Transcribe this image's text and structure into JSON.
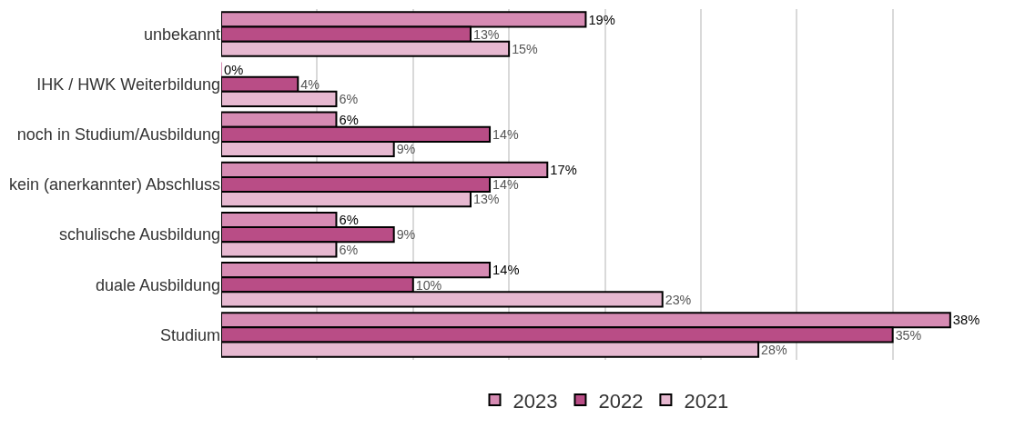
{
  "chart_data": {
    "type": "bar",
    "orientation": "horizontal",
    "categories": [
      "unbekannt",
      "IHK / HWK Weiterbildung",
      "noch in Studium/Ausbildung",
      "kein (anerkannter) Abschluss",
      "schulische Ausbildung",
      "duale Ausbildung",
      "Studium"
    ],
    "series": [
      {
        "name": "2023",
        "color": "#d68bb3",
        "values": [
          19,
          0,
          6,
          17,
          6,
          14,
          38
        ],
        "value_labels": [
          "19%",
          "0%",
          "6%",
          "17%",
          "6%",
          "14%",
          "38%"
        ]
      },
      {
        "name": "2022",
        "color": "#b94d86",
        "values": [
          13,
          4,
          14,
          14,
          9,
          10,
          35
        ],
        "value_labels": [
          "13%",
          "4%",
          "14%",
          "14%",
          "9%",
          "10%",
          "35%"
        ]
      },
      {
        "name": "2021",
        "color": "#e6b8d0",
        "values": [
          15,
          6,
          9,
          13,
          6,
          23,
          28
        ],
        "value_labels": [
          "15%",
          "6%",
          "9%",
          "13%",
          "6%",
          "23%",
          "28%"
        ]
      }
    ],
    "tick_labels": "y",
    "grid": "x",
    "legend": "bottom"
  }
}
